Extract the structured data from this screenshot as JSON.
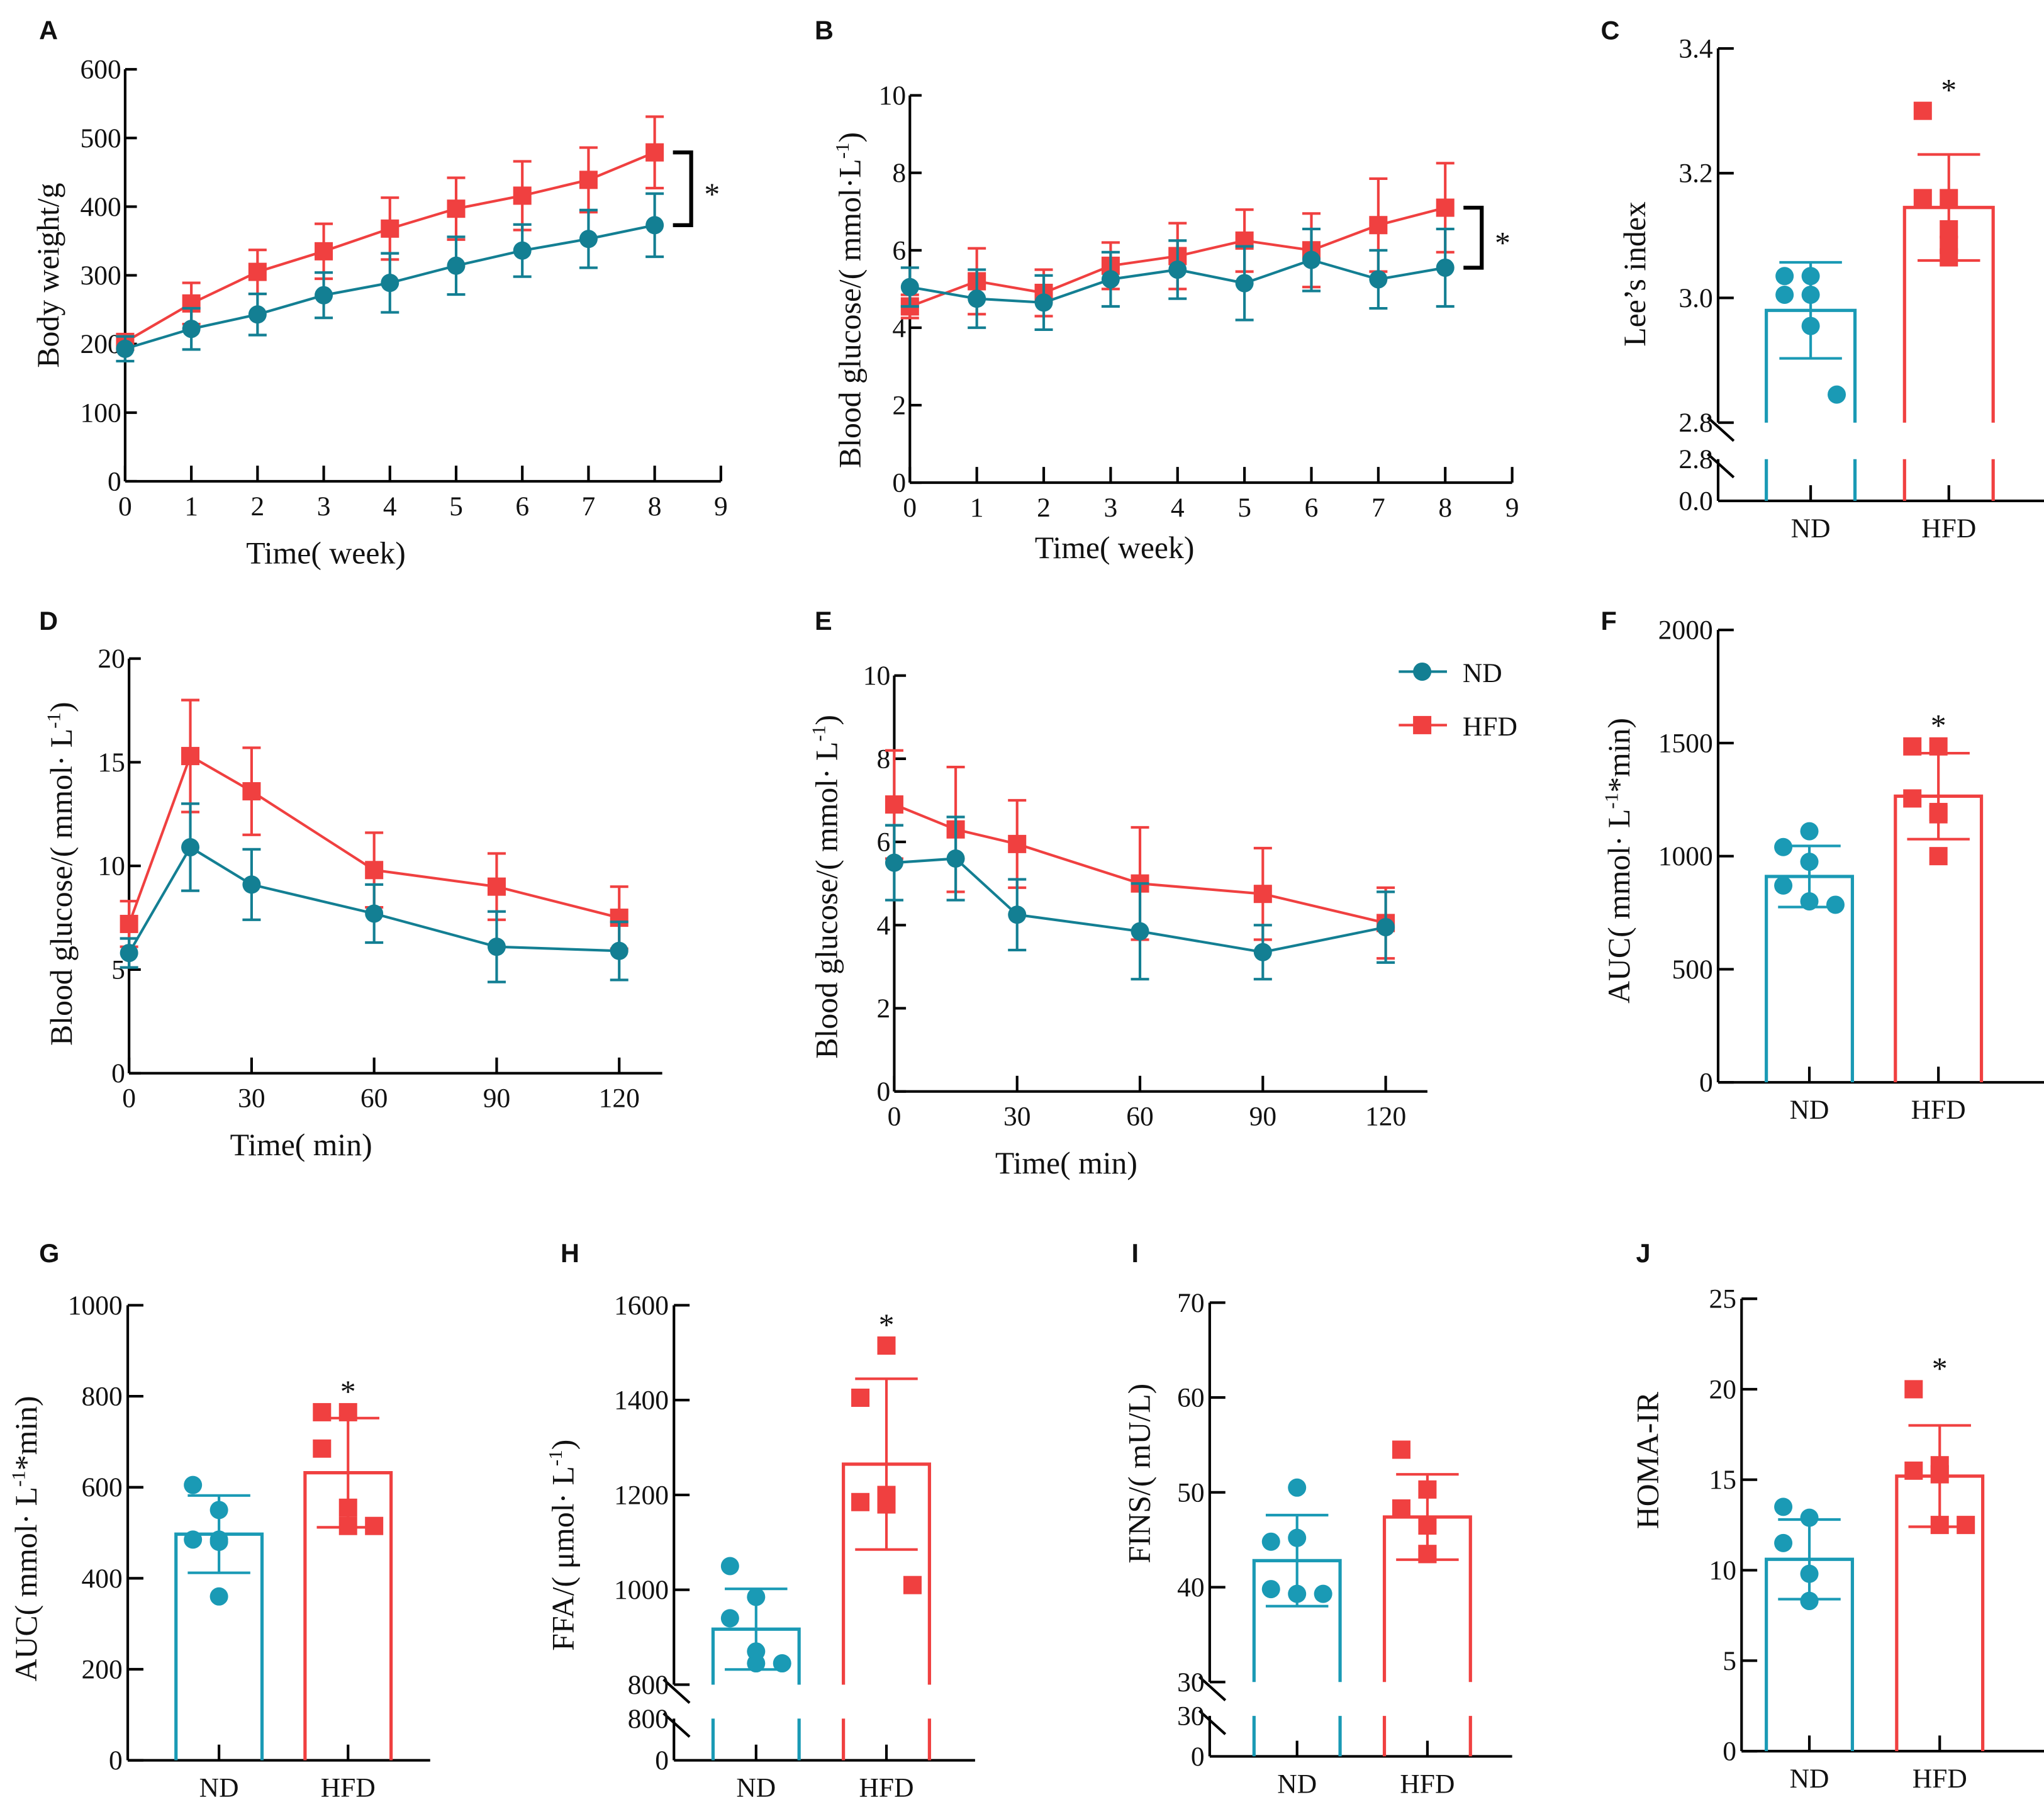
{
  "colors": {
    "ND": "#137f93",
    "ND_bar": "#1a9ab5",
    "HFD": "#f04040",
    "axis": "#000000"
  },
  "legend": {
    "items": [
      "ND",
      "HFD"
    ],
    "placement": "top-right of panel E"
  },
  "chart_data": [
    {
      "panel": "A",
      "type": "line",
      "ylabel": "Body weight/g",
      "xlabel": "Time( week)",
      "xlim": [
        0,
        9
      ],
      "ylim": [
        0,
        600
      ],
      "xticks": [
        0,
        1,
        2,
        3,
        4,
        5,
        6,
        7,
        8,
        9
      ],
      "yticks": [
        0,
        100,
        200,
        300,
        400,
        500,
        600
      ],
      "x": [
        0,
        1,
        2,
        3,
        4,
        5,
        6,
        7,
        8
      ],
      "series": [
        {
          "name": "ND",
          "marker": "circle",
          "values": [
            193,
            222,
            243,
            271,
            289,
            314,
            336,
            353,
            373
          ],
          "sd": [
            18,
            30,
            30,
            33,
            43,
            42,
            38,
            42,
            46
          ]
        },
        {
          "name": "HFD",
          "marker": "square",
          "values": [
            203,
            259,
            305,
            335,
            368,
            397,
            416,
            439,
            479
          ],
          "sd": [
            10,
            30,
            32,
            40,
            45,
            45,
            50,
            47,
            52
          ]
        }
      ],
      "annotation": "*"
    },
    {
      "panel": "B",
      "type": "line",
      "ylabel": "Blood glucose/( mmol·L",
      "ylabel_sup": "-1",
      "ylabel_end": ")",
      "xlabel": "Time( week)",
      "xlim": [
        0,
        9
      ],
      "ylim": [
        0,
        10
      ],
      "xticks": [
        0,
        1,
        2,
        3,
        4,
        5,
        6,
        7,
        8,
        9
      ],
      "yticks": [
        0,
        2,
        4,
        6,
        8,
        10
      ],
      "x": [
        0,
        1,
        2,
        3,
        4,
        5,
        6,
        7,
        8
      ],
      "series": [
        {
          "name": "ND",
          "marker": "circle",
          "values": [
            5.05,
            4.75,
            4.65,
            5.25,
            5.5,
            5.15,
            5.75,
            5.25,
            5.55
          ],
          "sd": [
            0.5,
            0.75,
            0.7,
            0.7,
            0.75,
            0.95,
            0.8,
            0.75,
            1.0
          ]
        },
        {
          "name": "HFD",
          "marker": "square",
          "values": [
            4.55,
            5.2,
            4.9,
            5.6,
            5.85,
            6.25,
            6.0,
            6.65,
            7.1
          ],
          "sd": [
            0.3,
            0.85,
            0.6,
            0.6,
            0.85,
            0.8,
            0.95,
            1.2,
            1.15
          ]
        }
      ],
      "annotation": "*"
    },
    {
      "panel": "C",
      "type": "bar",
      "ylabel": "Lee’s index",
      "categories": [
        "ND",
        "HFD"
      ],
      "broken_axis": true,
      "ylim_lower": [
        0,
        2.8
      ],
      "ylim_upper": [
        2.8,
        3.4
      ],
      "yticks_lower": [
        "0.0",
        "2.8"
      ],
      "yticks_upper": [
        "2.8",
        "3.0",
        "3.2",
        "3.4"
      ],
      "values": [
        2.98,
        3.145
      ],
      "sd": [
        0.077,
        0.085
      ],
      "points": [
        [
          3.035,
          3.035,
          3.005,
          3.005,
          2.955,
          2.845
        ],
        [
          3.3,
          3.16,
          3.16,
          3.11,
          3.085,
          3.065
        ]
      ],
      "annotation": "*"
    },
    {
      "panel": "D",
      "type": "line",
      "ylabel": "Blood glucose/( mmol· L",
      "ylabel_sup": "-1",
      "ylabel_end": ")",
      "xlabel": "Time( min)",
      "xlim": [
        0,
        120
      ],
      "ylim": [
        0,
        20
      ],
      "xticks": [
        0,
        30,
        60,
        90,
        120
      ],
      "yticks": [
        0,
        5,
        10,
        15,
        20
      ],
      "x": [
        0,
        15,
        30,
        60,
        90,
        120
      ],
      "series": [
        {
          "name": "ND",
          "marker": "circle",
          "values": [
            5.8,
            10.9,
            9.1,
            7.7,
            6.1,
            5.9
          ],
          "sd": [
            0.7,
            2.1,
            1.7,
            1.4,
            1.7,
            1.4
          ]
        },
        {
          "name": "HFD",
          "marker": "square",
          "values": [
            7.2,
            15.3,
            13.6,
            9.8,
            9.0,
            7.5
          ],
          "sd": [
            1.1,
            2.7,
            2.1,
            1.8,
            1.6,
            1.5
          ]
        }
      ]
    },
    {
      "panel": "E",
      "type": "line",
      "ylabel": "Blood glucose/( mmol· L",
      "ylabel_sup": "-1",
      "ylabel_end": ")",
      "xlabel": "Time( min)",
      "xlim": [
        0,
        120
      ],
      "ylim": [
        0,
        10
      ],
      "xticks": [
        0,
        30,
        60,
        90,
        120
      ],
      "yticks": [
        0,
        2,
        4,
        6,
        8,
        10
      ],
      "x": [
        0,
        15,
        30,
        60,
        90,
        120
      ],
      "series": [
        {
          "name": "ND",
          "marker": "circle",
          "values": [
            5.5,
            5.6,
            4.25,
            3.85,
            3.35,
            3.95
          ],
          "sd": [
            0.9,
            1.0,
            0.85,
            1.15,
            0.65,
            0.85
          ]
        },
        {
          "name": "HFD",
          "marker": "square",
          "values": [
            6.9,
            6.3,
            5.95,
            5.0,
            4.75,
            4.05
          ],
          "sd": [
            1.3,
            1.5,
            1.05,
            1.35,
            1.1,
            0.85
          ]
        }
      ]
    },
    {
      "panel": "F",
      "type": "bar",
      "ylabel": "AUC( mmol· L",
      "ylabel_sup": "-1",
      "ylabel_end": "*min)",
      "categories": [
        "ND",
        "HFD"
      ],
      "ylim": [
        0,
        2000
      ],
      "yticks": [
        0,
        500,
        1000,
        1500,
        2000
      ],
      "values": [
        910,
        1265
      ],
      "sd": [
        135,
        190
      ],
      "points": [
        [
          1110,
          1040,
          975,
          870,
          800,
          785
        ],
        [
          1485,
          1485,
          1255,
          1195,
          1185,
          1000
        ]
      ],
      "annotation": "*"
    },
    {
      "panel": "G",
      "type": "bar",
      "ylabel": "AUC( mmol· L",
      "ylabel_sup": "-1",
      "ylabel_end": "*min)",
      "categories": [
        "ND",
        "HFD"
      ],
      "ylim": [
        0,
        1000
      ],
      "yticks": [
        0,
        200,
        400,
        600,
        800,
        1000
      ],
      "values": [
        497,
        632
      ],
      "sd": [
        85,
        120
      ],
      "points": [
        [
          605,
          550,
          485,
          480,
          485,
          360
        ],
        [
          765,
          765,
          685,
          555,
          515,
          515
        ]
      ],
      "annotation": "*"
    },
    {
      "panel": "H",
      "type": "bar",
      "ylabel": "FFA/( μmol· L",
      "ylabel_sup": "-1",
      "ylabel_end": ")",
      "categories": [
        "ND",
        "HFD"
      ],
      "broken_axis": true,
      "ylim_lower": [
        0,
        800
      ],
      "ylim_upper": [
        800,
        1600
      ],
      "yticks_lower": [
        "0",
        "800"
      ],
      "yticks_upper": [
        "800",
        "1000",
        "1200",
        "1400",
        "1600"
      ],
      "values": [
        917,
        1265
      ],
      "sd": [
        85,
        180
      ],
      "points": [
        [
          1050,
          985,
          940,
          870,
          845,
          845
        ],
        [
          1515,
          1405,
          1200,
          1185,
          1180,
          1010
        ]
      ],
      "annotation": "*"
    },
    {
      "panel": "I",
      "type": "bar",
      "ylabel": "FINS/( mU/L)",
      "categories": [
        "ND",
        "HFD"
      ],
      "broken_axis": true,
      "ylim_lower": [
        0,
        30
      ],
      "ylim_upper": [
        30,
        70
      ],
      "yticks_lower": [
        "0",
        "30"
      ],
      "yticks_upper": [
        "30",
        "40",
        "50",
        "60",
        "70"
      ],
      "values": [
        42.8,
        47.4
      ],
      "sd": [
        4.8,
        4.5
      ],
      "points": [
        [
          50.5,
          44.8,
          45.2,
          39.8,
          39.3,
          39.3
        ],
        [
          54.5,
          50.3,
          48.3,
          46.5,
          43.5,
          43.5
        ]
      ]
    },
    {
      "panel": "J",
      "type": "bar",
      "ylabel": "HOMA-IR",
      "categories": [
        "ND",
        "HFD"
      ],
      "ylim": [
        0,
        25
      ],
      "yticks": [
        0,
        5,
        10,
        15,
        20,
        25
      ],
      "values": [
        10.6,
        15.2
      ],
      "sd": [
        2.2,
        2.8
      ],
      "points": [
        [
          13.5,
          12.9,
          11.5,
          9.8,
          8.3,
          8.3
        ],
        [
          20,
          15.8,
          15.5,
          15.3,
          12.5,
          12.5
        ]
      ],
      "annotation": "*"
    }
  ]
}
